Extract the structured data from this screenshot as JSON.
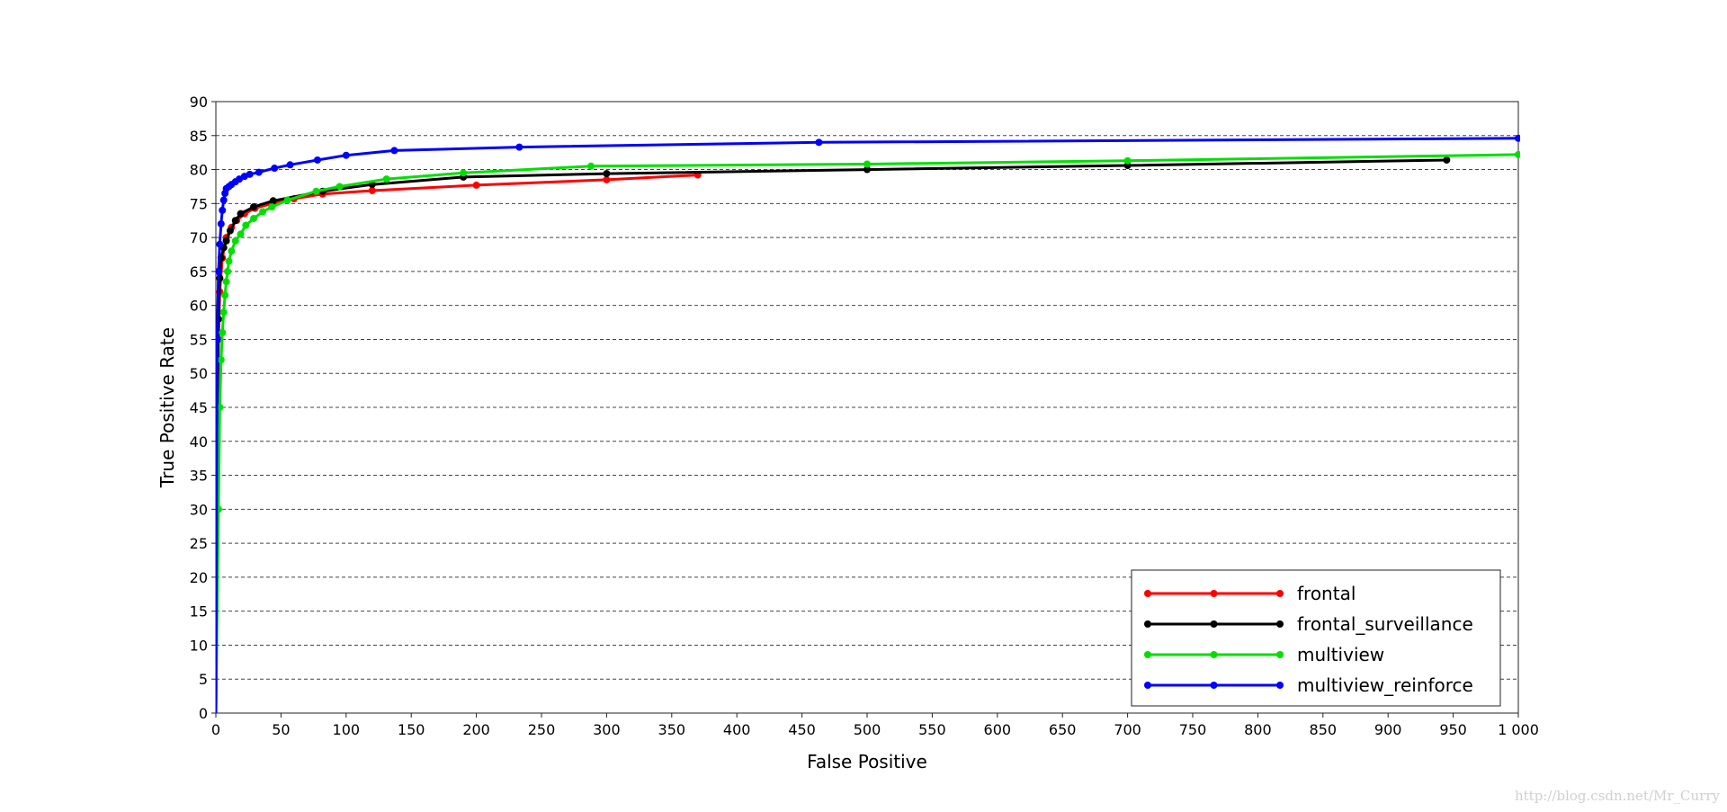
{
  "chart_data": {
    "type": "line",
    "title": "",
    "xlabel": "False Positive",
    "ylabel": "True Positive Rate",
    "xlim": [
      0,
      1000
    ],
    "ylim": [
      0,
      90
    ],
    "x_ticks": [
      0,
      50,
      100,
      150,
      200,
      250,
      300,
      350,
      400,
      450,
      500,
      550,
      600,
      650,
      700,
      750,
      800,
      850,
      900,
      950,
      1000
    ],
    "x_tick_labels": [
      "0",
      "50",
      "100",
      "150",
      "200",
      "250",
      "300",
      "350",
      "400",
      "450",
      "500",
      "550",
      "600",
      "650",
      "700",
      "750",
      "800",
      "850",
      "900",
      "950",
      "1 000"
    ],
    "y_ticks": [
      0,
      5,
      10,
      15,
      20,
      25,
      30,
      35,
      40,
      45,
      50,
      55,
      60,
      65,
      70,
      75,
      80,
      85,
      90
    ],
    "y_tick_labels": [
      "0",
      "5",
      "10",
      "15",
      "20",
      "25",
      "30",
      "35",
      "40",
      "45",
      "50",
      "55",
      "60",
      "65",
      "70",
      "75",
      "80",
      "85",
      "90"
    ],
    "grid": "horizontal dashed",
    "legend_position": "bottom-right",
    "series": [
      {
        "name": "frontal",
        "color": "#ff0000",
        "x": [
          0,
          1,
          2,
          3,
          5,
          8,
          12,
          16,
          22,
          30,
          45,
          60,
          82,
          120,
          200,
          300,
          370
        ],
        "y": [
          0,
          40,
          55,
          62,
          67,
          70,
          71.5,
          72.5,
          73.5,
          74.3,
          75.1,
          75.7,
          76.4,
          76.9,
          77.7,
          78.5,
          79.2
        ]
      },
      {
        "name": "frontal_surveillance",
        "color": "#000000",
        "x": [
          0,
          1,
          2,
          3,
          4,
          6,
          8,
          11,
          15,
          19,
          29,
          44,
          82,
          120,
          190,
          300,
          500,
          700,
          945
        ],
        "y": [
          0,
          45,
          58,
          64,
          67,
          68.5,
          69.5,
          71,
          72.5,
          73.5,
          74.5,
          75.4,
          76.8,
          77.8,
          78.9,
          79.4,
          80,
          80.6,
          81.4
        ]
      },
      {
        "name": "multiview",
        "color": "#00e000",
        "x": [
          0,
          2,
          3,
          4,
          5,
          6,
          7,
          8,
          9,
          10,
          12,
          15,
          19,
          23,
          29,
          36,
          43,
          55,
          77,
          95,
          131,
          190,
          288,
          500,
          700,
          1000
        ],
        "y": [
          0,
          30,
          45,
          52,
          56,
          59,
          61.5,
          63.5,
          65,
          66.5,
          68,
          69.5,
          70.5,
          71.8,
          72.8,
          73.8,
          74.5,
          75.5,
          76.8,
          77.5,
          78.6,
          79.5,
          80.5,
          80.8,
          81.3,
          82.2
        ]
      },
      {
        "name": "multiview_reinforce",
        "color": "#0000ff",
        "x": [
          0,
          1,
          2,
          3,
          4,
          5,
          6,
          7,
          8,
          10,
          12,
          15,
          18,
          22,
          26,
          33,
          45,
          57,
          78,
          100,
          137,
          233,
          463,
          1000
        ],
        "y": [
          0,
          55,
          65,
          69,
          72,
          74,
          75.5,
          76.5,
          77.2,
          77.5,
          77.8,
          78.2,
          78.6,
          79,
          79.3,
          79.6,
          80.2,
          80.7,
          81.4,
          82.1,
          82.8,
          83.3,
          84,
          84.6
        ]
      }
    ]
  },
  "watermark": "http://blog.csdn.net/Mr_Curry"
}
